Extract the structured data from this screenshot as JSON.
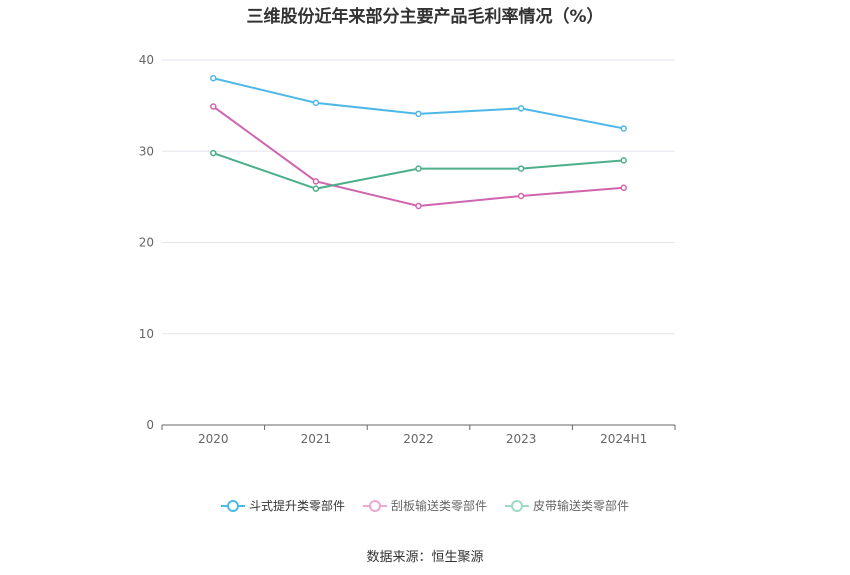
{
  "chart_data": {
    "type": "line",
    "title": "三维股份近年来部分主要产品毛利率情况（%）",
    "categories": [
      "2020",
      "2021",
      "2022",
      "2023",
      "2024H1"
    ],
    "ylim": [
      0,
      40
    ],
    "yticks": [
      "0",
      "10",
      "20",
      "30",
      "40"
    ],
    "grid": true,
    "legend_position": "bottom",
    "series": [
      {
        "name": "斗式提升类零部件",
        "color": "#4db8e8",
        "values": [
          38.0,
          35.3,
          34.1,
          34.7,
          32.5
        ]
      },
      {
        "name": "刮板输送类零部件",
        "color": "#d065ae",
        "values": [
          34.9,
          26.7,
          24.0,
          25.1,
          26.0
        ]
      },
      {
        "name": "皮带输送类零部件",
        "color": "#4caf8a",
        "values": [
          29.8,
          25.9,
          28.1,
          28.1,
          29.0
        ]
      }
    ]
  },
  "source": "数据来源：恒生聚源"
}
